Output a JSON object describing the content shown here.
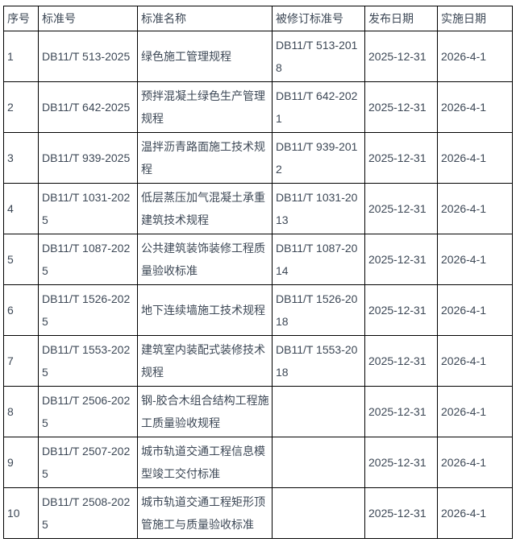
{
  "table": {
    "name": "standards-revision-table",
    "headers": [
      "序号",
      "标准号",
      "标准名称",
      "被修订标准号",
      "发布日期",
      "实施日期"
    ],
    "rows": [
      [
        "1",
        "DB11/T 513-2025",
        "绿色施工管理规程",
        "DB11/T 513-2018",
        "2025-12-31",
        "2026-4-1"
      ],
      [
        "2",
        "DB11/T 642-2025",
        "预拌混凝土绿色生产管理规程",
        "DB11/T 642-2021",
        "2025-12-31",
        "2026-4-1"
      ],
      [
        "3",
        "DB11/T 939-2025",
        "温拌沥青路面施工技术规程",
        "DB11/T 939-2012",
        "2025-12-31",
        "2026-4-1"
      ],
      [
        "4",
        "DB11/T 1031-2025",
        "低层蒸压加气混凝土承重建筑技术规程",
        "DB11/T 1031-2013",
        "2025-12-31",
        "2026-4-1"
      ],
      [
        "5",
        "DB11/T 1087-2025",
        "公共建筑装饰装修工程质量验收标准",
        "DB11/T 1087-2014",
        "2025-12-31",
        "2026-4-1"
      ],
      [
        "6",
        "DB11/T 1526-2025",
        "地下连续墙施工技术规程",
        "DB11/T 1526-2018",
        "2025-12-31",
        "2026-4-1"
      ],
      [
        "7",
        "DB11/T 1553-2025",
        "建筑室内装配式装修技术规程",
        "DB11/T 1553-2018",
        "2025-12-31",
        "2026-4-1"
      ],
      [
        "8",
        "DB11/T 2506-2025",
        "钢-胶合木组合结构工程施工质量验收规程",
        "",
        "2025-12-31",
        "2026-4-1"
      ],
      [
        "9",
        "DB11/T 2507-2025",
        "城市轨道交通工程信息模型竣工交付标准",
        "",
        "2025-12-31",
        "2026-4-1"
      ],
      [
        "10",
        "DB11/T 2508-2025",
        "城市轨道交通工程矩形顶管施工与质量验收标准",
        "",
        "2025-12-31",
        "2026-4-1"
      ]
    ],
    "column_names": [
      "index",
      "standard-no",
      "standard-name",
      "revised-standard-no",
      "publish-date",
      "implement-date"
    ],
    "colors": {
      "text": "#3d4856",
      "border": "#000000",
      "background": "#ffffff"
    }
  }
}
